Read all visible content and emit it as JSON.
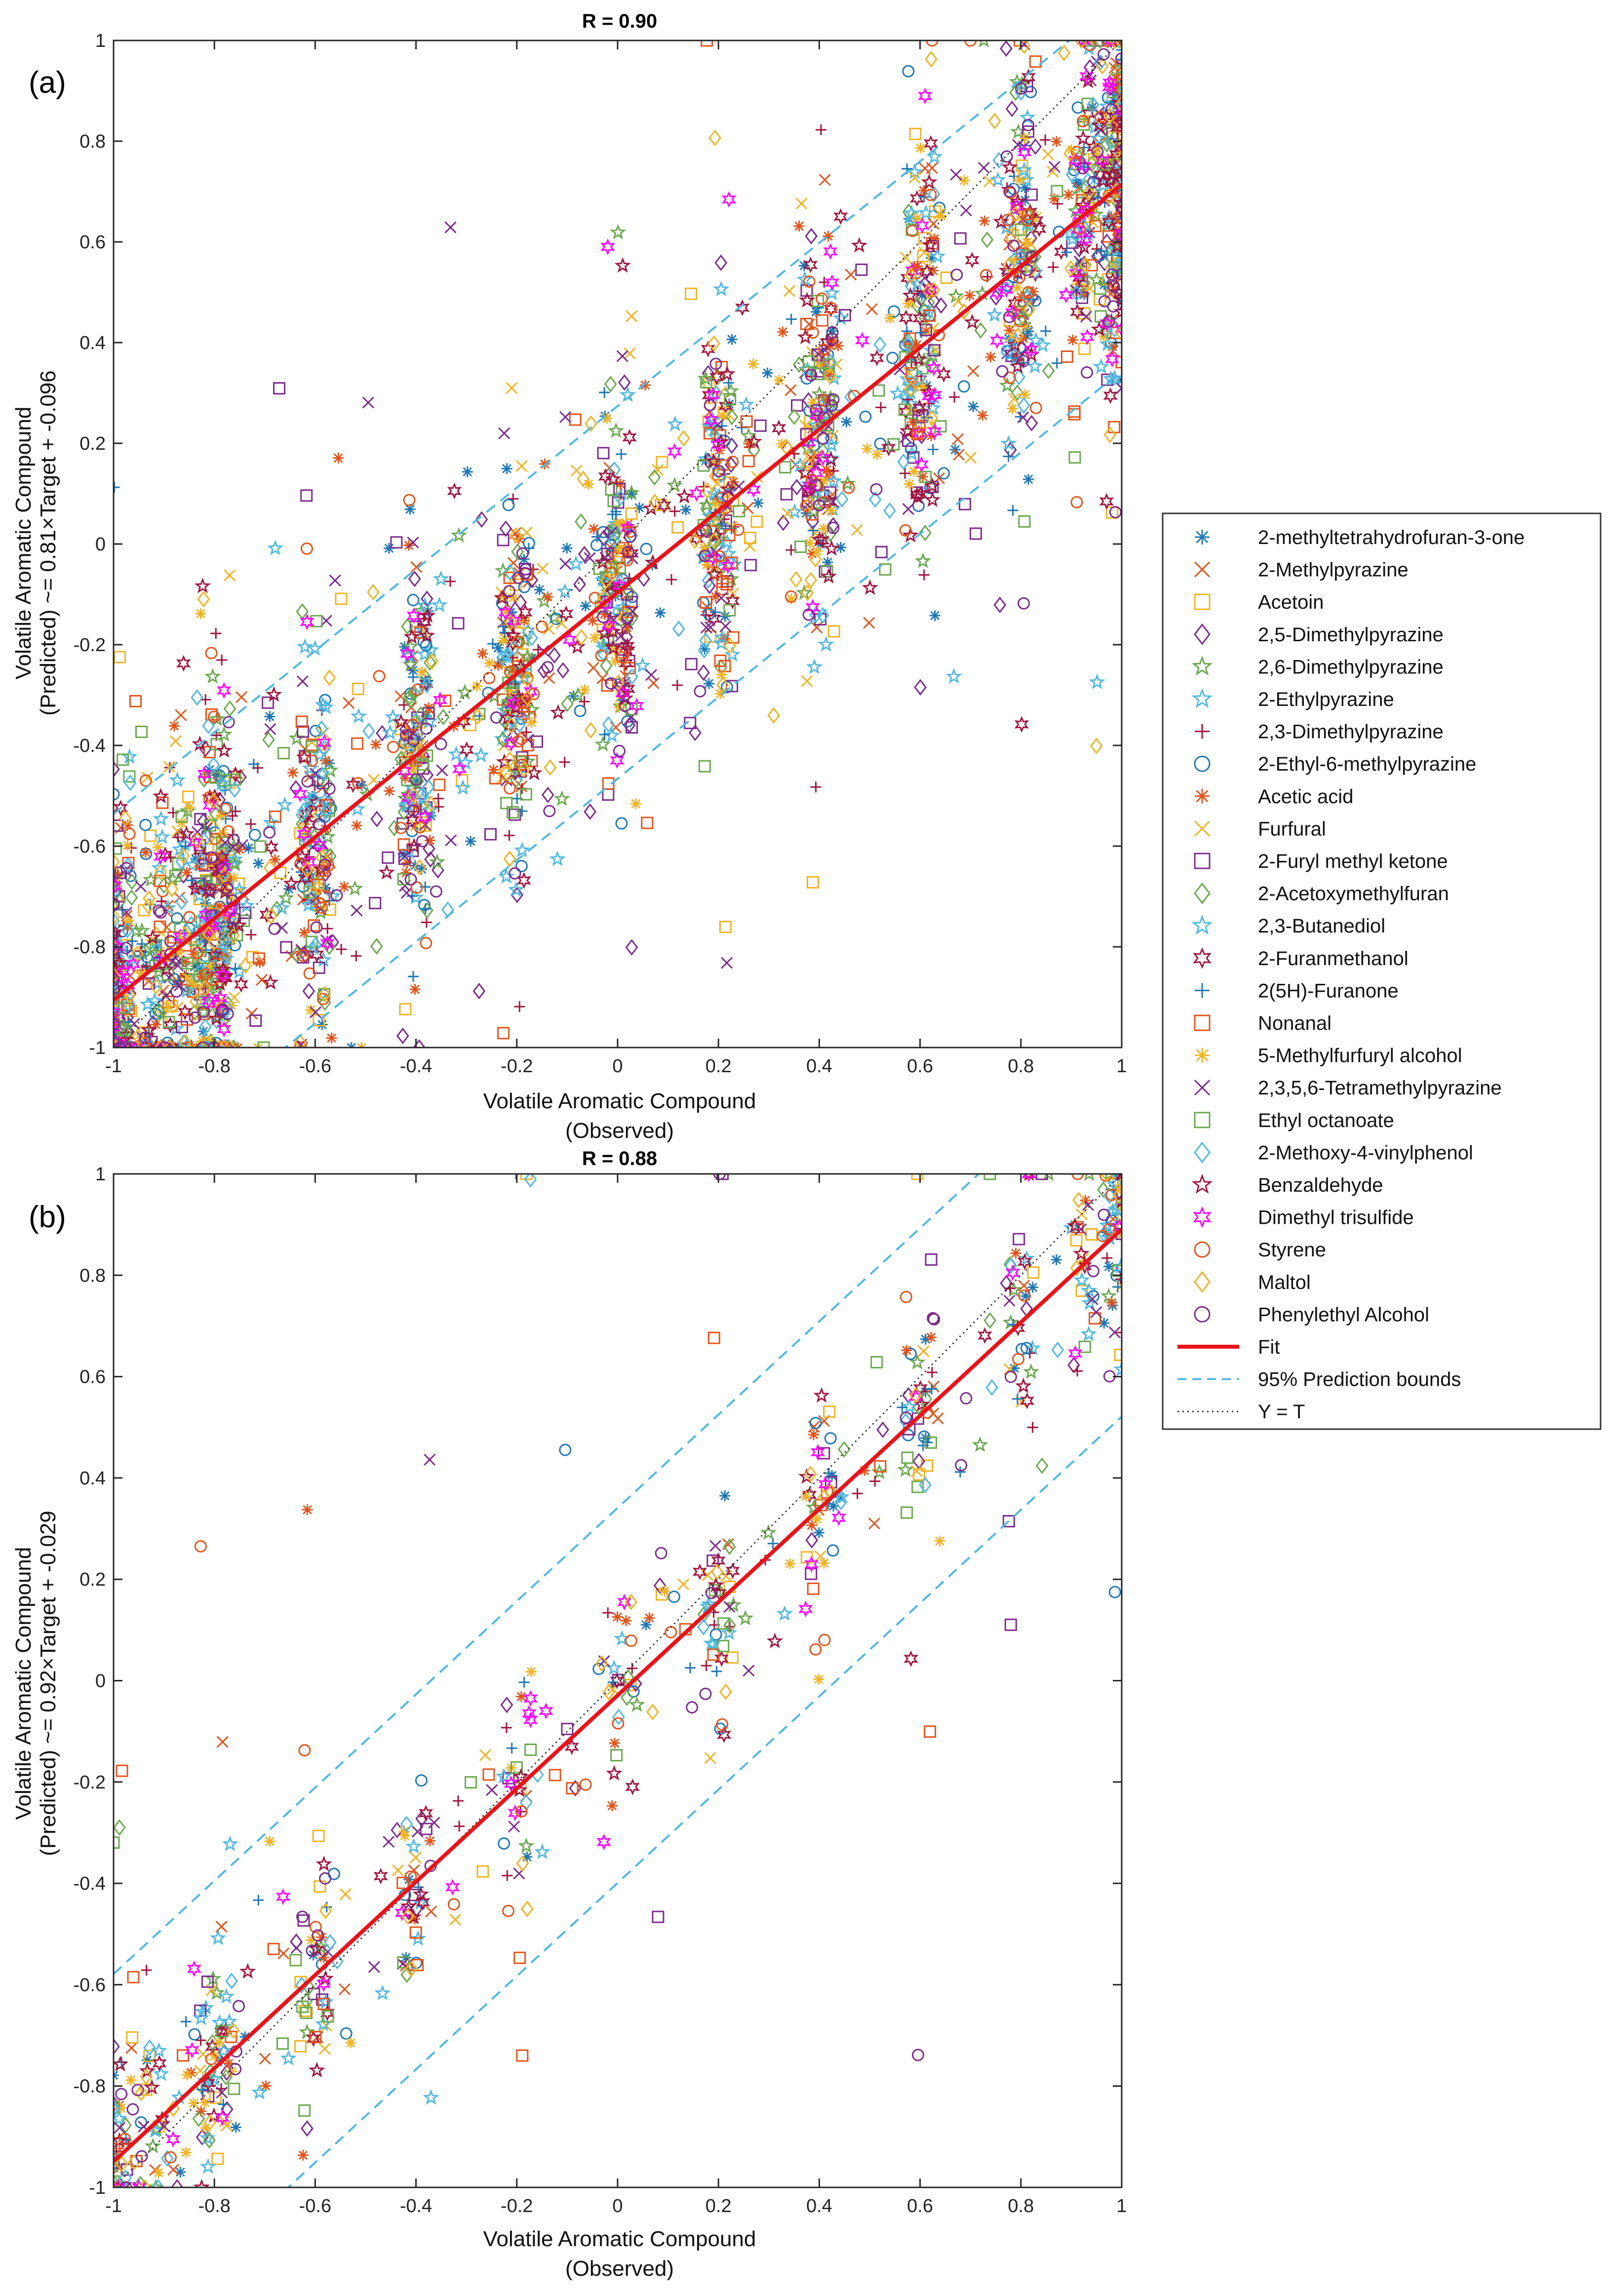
{
  "chart_data": [
    {
      "panel": "(a)",
      "type": "scatter",
      "title": "R = 0.90",
      "xlabel": [
        "Volatile Aromatic Compound",
        "(Observed)"
      ],
      "ylabel": [
        "Volatile Aromatic Compound",
        "(Predicted) ~= 0.81×Target + -0.096"
      ],
      "xlim": [
        -1,
        1
      ],
      "ylim": [
        -1,
        1
      ],
      "xticks": [
        "-1",
        "-0.8",
        "-0.6",
        "-0.4",
        "-0.2",
        "0",
        "0.2",
        "0.4",
        "0.6",
        "0.8",
        "1"
      ],
      "yticks": [
        "-1",
        "-0.8",
        "-0.6",
        "-0.4",
        "-0.2",
        "0",
        "0.2",
        "0.4",
        "0.6",
        "0.8",
        "1"
      ],
      "fit": {
        "slope": 0.81,
        "intercept": -0.096
      },
      "prediction_bounds_offset": 0.37,
      "points_per_series": 120,
      "noise": 0.18,
      "outlier_noise": 0.45
    },
    {
      "panel": "(b)",
      "type": "scatter",
      "title": "R = 0.88",
      "xlabel": [
        "Volatile Aromatic Compound",
        "(Observed)"
      ],
      "ylabel": [
        "Volatile Aromatic Compound",
        "(Predicted) ~= 0.92×Target + -0.029"
      ],
      "xlim": [
        -1,
        1
      ],
      "ylim": [
        -1,
        1
      ],
      "xticks": [
        "-1",
        "-0.8",
        "-0.6",
        "-0.4",
        "-0.2",
        "0",
        "0.2",
        "0.4",
        "0.6",
        "0.8",
        "1"
      ],
      "yticks": [
        "-1",
        "-0.8",
        "-0.6",
        "-0.4",
        "-0.2",
        "0",
        "0.2",
        "0.4",
        "0.6",
        "0.8",
        "1"
      ],
      "fit": {
        "slope": 0.92,
        "intercept": -0.029
      },
      "prediction_bounds_offset": 0.37,
      "points_per_series": 28,
      "noise": 0.11,
      "outlier_noise": 0.5
    }
  ],
  "legend": {
    "placement": "right",
    "series": [
      {
        "name": "2-methyltetrahydrofuran-3-one",
        "marker": "asterisk",
        "color": "#1f77b4"
      },
      {
        "name": "2-Methylpyrazine",
        "marker": "x",
        "color": "#e2541b"
      },
      {
        "name": "Acetoin",
        "marker": "square",
        "color": "#f0b323"
      },
      {
        "name": "2,5-Dimethylpyrazine",
        "marker": "diamond",
        "color": "#7b2c8c"
      },
      {
        "name": "2,6-Dimethylpyrazine",
        "marker": "star5",
        "color": "#6aa84f"
      },
      {
        "name": "2-Ethylpyrazine",
        "marker": "star5",
        "color": "#4fb8e0"
      },
      {
        "name": "2,3-Dimethylpyrazine",
        "marker": "plus",
        "color": "#a0153e"
      },
      {
        "name": "2-Ethyl-6-methylpyrazine",
        "marker": "circle",
        "color": "#1f77b4"
      },
      {
        "name": "Acetic acid",
        "marker": "asterisk",
        "color": "#e2541b"
      },
      {
        "name": "Furfural",
        "marker": "x",
        "color": "#f0b323"
      },
      {
        "name": "2-Furyl methyl ketone",
        "marker": "square",
        "color": "#7b2c8c"
      },
      {
        "name": "2-Acetoxymethylfuran",
        "marker": "diamond",
        "color": "#6aa84f"
      },
      {
        "name": "2,3-Butanediol",
        "marker": "star5",
        "color": "#4fb8e0"
      },
      {
        "name": "2-Furanmethanol",
        "marker": "star6",
        "color": "#a0153e"
      },
      {
        "name": "2(5H)-Furanone",
        "marker": "plus",
        "color": "#1f77b4"
      },
      {
        "name": "Nonanal",
        "marker": "square",
        "color": "#e2541b"
      },
      {
        "name": "5-Methylfurfuryl alcohol",
        "marker": "asterisk",
        "color": "#f0b323"
      },
      {
        "name": "2,3,5,6-Tetramethylpyrazine",
        "marker": "x",
        "color": "#7b2c8c"
      },
      {
        "name": "Ethyl octanoate",
        "marker": "square",
        "color": "#6aa84f"
      },
      {
        "name": "2-Methoxy-4-vinylphenol",
        "marker": "diamond",
        "color": "#4fb8e0"
      },
      {
        "name": "Benzaldehyde",
        "marker": "star5",
        "color": "#a0153e"
      },
      {
        "name": "Dimethyl trisulfide",
        "marker": "star6",
        "color": "#ff00ff"
      },
      {
        "name": "Styrene",
        "marker": "circle",
        "color": "#e2541b"
      },
      {
        "name": "Maltol",
        "marker": "diamond",
        "color": "#f0b323"
      },
      {
        "name": "Phenylethyl Alcohol",
        "marker": "circle",
        "color": "#7b2c8c"
      }
    ],
    "lines": [
      {
        "name": "Fit",
        "style": "solid",
        "color": "#e8141b"
      },
      {
        "name": "95% Prediction bounds",
        "style": "dashed",
        "color": "#4fb8e0"
      },
      {
        "name": "Y = T",
        "style": "dotted",
        "color": "#333333"
      }
    ]
  }
}
